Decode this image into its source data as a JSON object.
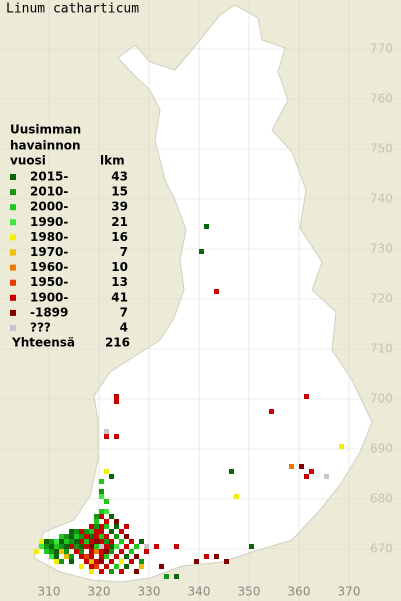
{
  "title": "Linum catharticum",
  "legend": {
    "heading": [
      "Uusimman",
      "havainnon",
      "vuosi"
    ],
    "count_heading": "lkm",
    "entries": [
      {
        "label": "2015-",
        "count": 43,
        "color": "#0a640a"
      },
      {
        "label": "2010-",
        "count": 15,
        "color": "#149614"
      },
      {
        "label": "2000-",
        "count": 39,
        "color": "#1ec81e"
      },
      {
        "label": "1990-",
        "count": 21,
        "color": "#3ce63c"
      },
      {
        "label": "1980-",
        "count": 16,
        "color": "#f0f000"
      },
      {
        "label": "1970-",
        "count": 7,
        "color": "#f0c000"
      },
      {
        "label": "1960-",
        "count": 10,
        "color": "#f07800"
      },
      {
        "label": "1950-",
        "count": 13,
        "color": "#e83c00"
      },
      {
        "label": "1900-",
        "count": 41,
        "color": "#c80000"
      },
      {
        "label": "-1899",
        "count": 7,
        "color": "#820000"
      },
      {
        "label": "???",
        "count": 4,
        "color": "#c8c8c8"
      }
    ],
    "total_label": "Yhteensä",
    "total": 216
  },
  "grid": {
    "northing_ticks": [
      670,
      680,
      690,
      700,
      710,
      720,
      730,
      740,
      750,
      760,
      770
    ],
    "easting_ticks": [
      310,
      320,
      330,
      340,
      350,
      360,
      370
    ]
  },
  "squares": [
    [
      341,
      734,
      0
    ],
    [
      340,
      729,
      0
    ],
    [
      343,
      721,
      8
    ],
    [
      323,
      700,
      8
    ],
    [
      323,
      699,
      8
    ],
    [
      354,
      697,
      8
    ],
    [
      361,
      700,
      8
    ],
    [
      368,
      690,
      4
    ],
    [
      323,
      692,
      8
    ],
    [
      321,
      693,
      10
    ],
    [
      321,
      692,
      8
    ],
    [
      346,
      685,
      0
    ],
    [
      347,
      680,
      4
    ],
    [
      358,
      686,
      6
    ],
    [
      360,
      686,
      9
    ],
    [
      361,
      684,
      8
    ],
    [
      362,
      685,
      8
    ],
    [
      365,
      684,
      10
    ],
    [
      350,
      670,
      0
    ],
    [
      321,
      685,
      4
    ],
    [
      322,
      684,
      0
    ],
    [
      320,
      683,
      2
    ],
    [
      320,
      681,
      1
    ],
    [
      320,
      680,
      3
    ],
    [
      321,
      679,
      2
    ],
    [
      331,
      670,
      8
    ],
    [
      335,
      670,
      8
    ],
    [
      341,
      668,
      8
    ],
    [
      343,
      668,
      9
    ],
    [
      339,
      667,
      9
    ],
    [
      345,
      667,
      9
    ],
    [
      329,
      670,
      10
    ],
    [
      332,
      666,
      9
    ],
    [
      335,
      664,
      0
    ],
    [
      333,
      664,
      1
    ],
    [
      320,
      677,
      2
    ],
    [
      321,
      677,
      3
    ],
    [
      319,
      676,
      1
    ],
    [
      320,
      676,
      8
    ],
    [
      322,
      676,
      0
    ],
    [
      319,
      675,
      2
    ],
    [
      321,
      675,
      8
    ],
    [
      323,
      675,
      9
    ],
    [
      318,
      674,
      8
    ],
    [
      319,
      674,
      1
    ],
    [
      320,
      674,
      8
    ],
    [
      321,
      674,
      2
    ],
    [
      323,
      674,
      0
    ],
    [
      325,
      674,
      8
    ],
    [
      314,
      673,
      0
    ],
    [
      315,
      673,
      1
    ],
    [
      316,
      673,
      8
    ],
    [
      317,
      673,
      1
    ],
    [
      318,
      673,
      2
    ],
    [
      319,
      673,
      8
    ],
    [
      320,
      673,
      8
    ],
    [
      322,
      673,
      0
    ],
    [
      324,
      673,
      8
    ],
    [
      312,
      672,
      2
    ],
    [
      313,
      672,
      1
    ],
    [
      314,
      672,
      0
    ],
    [
      315,
      672,
      2
    ],
    [
      316,
      672,
      1
    ],
    [
      317,
      672,
      8
    ],
    [
      318,
      672,
      0
    ],
    [
      319,
      672,
      8
    ],
    [
      320,
      672,
      2
    ],
    [
      321,
      672,
      8
    ],
    [
      323,
      672,
      1
    ],
    [
      325,
      672,
      9
    ],
    [
      308,
      671,
      4
    ],
    [
      309,
      671,
      0
    ],
    [
      310,
      671,
      1
    ],
    [
      311,
      671,
      3
    ],
    [
      312,
      671,
      0
    ],
    [
      313,
      671,
      2
    ],
    [
      314,
      671,
      1
    ],
    [
      315,
      671,
      0
    ],
    [
      316,
      671,
      8
    ],
    [
      317,
      671,
      2
    ],
    [
      318,
      671,
      8
    ],
    [
      319,
      671,
      9
    ],
    [
      320,
      671,
      8
    ],
    [
      321,
      671,
      1
    ],
    [
      322,
      671,
      8
    ],
    [
      324,
      671,
      2
    ],
    [
      326,
      671,
      8
    ],
    [
      328,
      671,
      0
    ],
    [
      308,
      670,
      3
    ],
    [
      309,
      670,
      1
    ],
    [
      310,
      670,
      0
    ],
    [
      311,
      670,
      2
    ],
    [
      312,
      670,
      1
    ],
    [
      313,
      670,
      0
    ],
    [
      314,
      670,
      8
    ],
    [
      315,
      670,
      1
    ],
    [
      316,
      670,
      0
    ],
    [
      317,
      670,
      8
    ],
    [
      318,
      670,
      9
    ],
    [
      319,
      670,
      2
    ],
    [
      320,
      670,
      10
    ],
    [
      321,
      670,
      8
    ],
    [
      322,
      670,
      0
    ],
    [
      323,
      670,
      3
    ],
    [
      325,
      670,
      8
    ],
    [
      327,
      670,
      2
    ],
    [
      307,
      669,
      4
    ],
    [
      309,
      669,
      2
    ],
    [
      310,
      669,
      1
    ],
    [
      311,
      669,
      0
    ],
    [
      312,
      669,
      5
    ],
    [
      313,
      669,
      1
    ],
    [
      315,
      669,
      8
    ],
    [
      316,
      669,
      1
    ],
    [
      318,
      669,
      8
    ],
    [
      319,
      669,
      6
    ],
    [
      320,
      669,
      8
    ],
    [
      321,
      669,
      9
    ],
    [
      322,
      669,
      1
    ],
    [
      324,
      669,
      8
    ],
    [
      326,
      669,
      2
    ],
    [
      329,
      669,
      8
    ],
    [
      310,
      668,
      3
    ],
    [
      311,
      668,
      0
    ],
    [
      313,
      668,
      5
    ],
    [
      314,
      668,
      1
    ],
    [
      316,
      668,
      8
    ],
    [
      317,
      668,
      7
    ],
    [
      318,
      668,
      8
    ],
    [
      320,
      668,
      8
    ],
    [
      321,
      668,
      2
    ],
    [
      323,
      668,
      8
    ],
    [
      325,
      668,
      0
    ],
    [
      327,
      668,
      9
    ],
    [
      311,
      667,
      4
    ],
    [
      312,
      667,
      1
    ],
    [
      314,
      667,
      0
    ],
    [
      317,
      667,
      8
    ],
    [
      318,
      667,
      5
    ],
    [
      319,
      667,
      8
    ],
    [
      320,
      667,
      9
    ],
    [
      322,
      667,
      8
    ],
    [
      324,
      667,
      4
    ],
    [
      326,
      667,
      8
    ],
    [
      328,
      667,
      1
    ],
    [
      316,
      666,
      4
    ],
    [
      318,
      666,
      8
    ],
    [
      319,
      666,
      7
    ],
    [
      321,
      666,
      8
    ],
    [
      323,
      666,
      2
    ],
    [
      325,
      666,
      0
    ],
    [
      328,
      666,
      5
    ],
    [
      318,
      665,
      4
    ],
    [
      320,
      665,
      8
    ],
    [
      322,
      665,
      1
    ],
    [
      324,
      665,
      8
    ],
    [
      327,
      665,
      9
    ]
  ]
}
